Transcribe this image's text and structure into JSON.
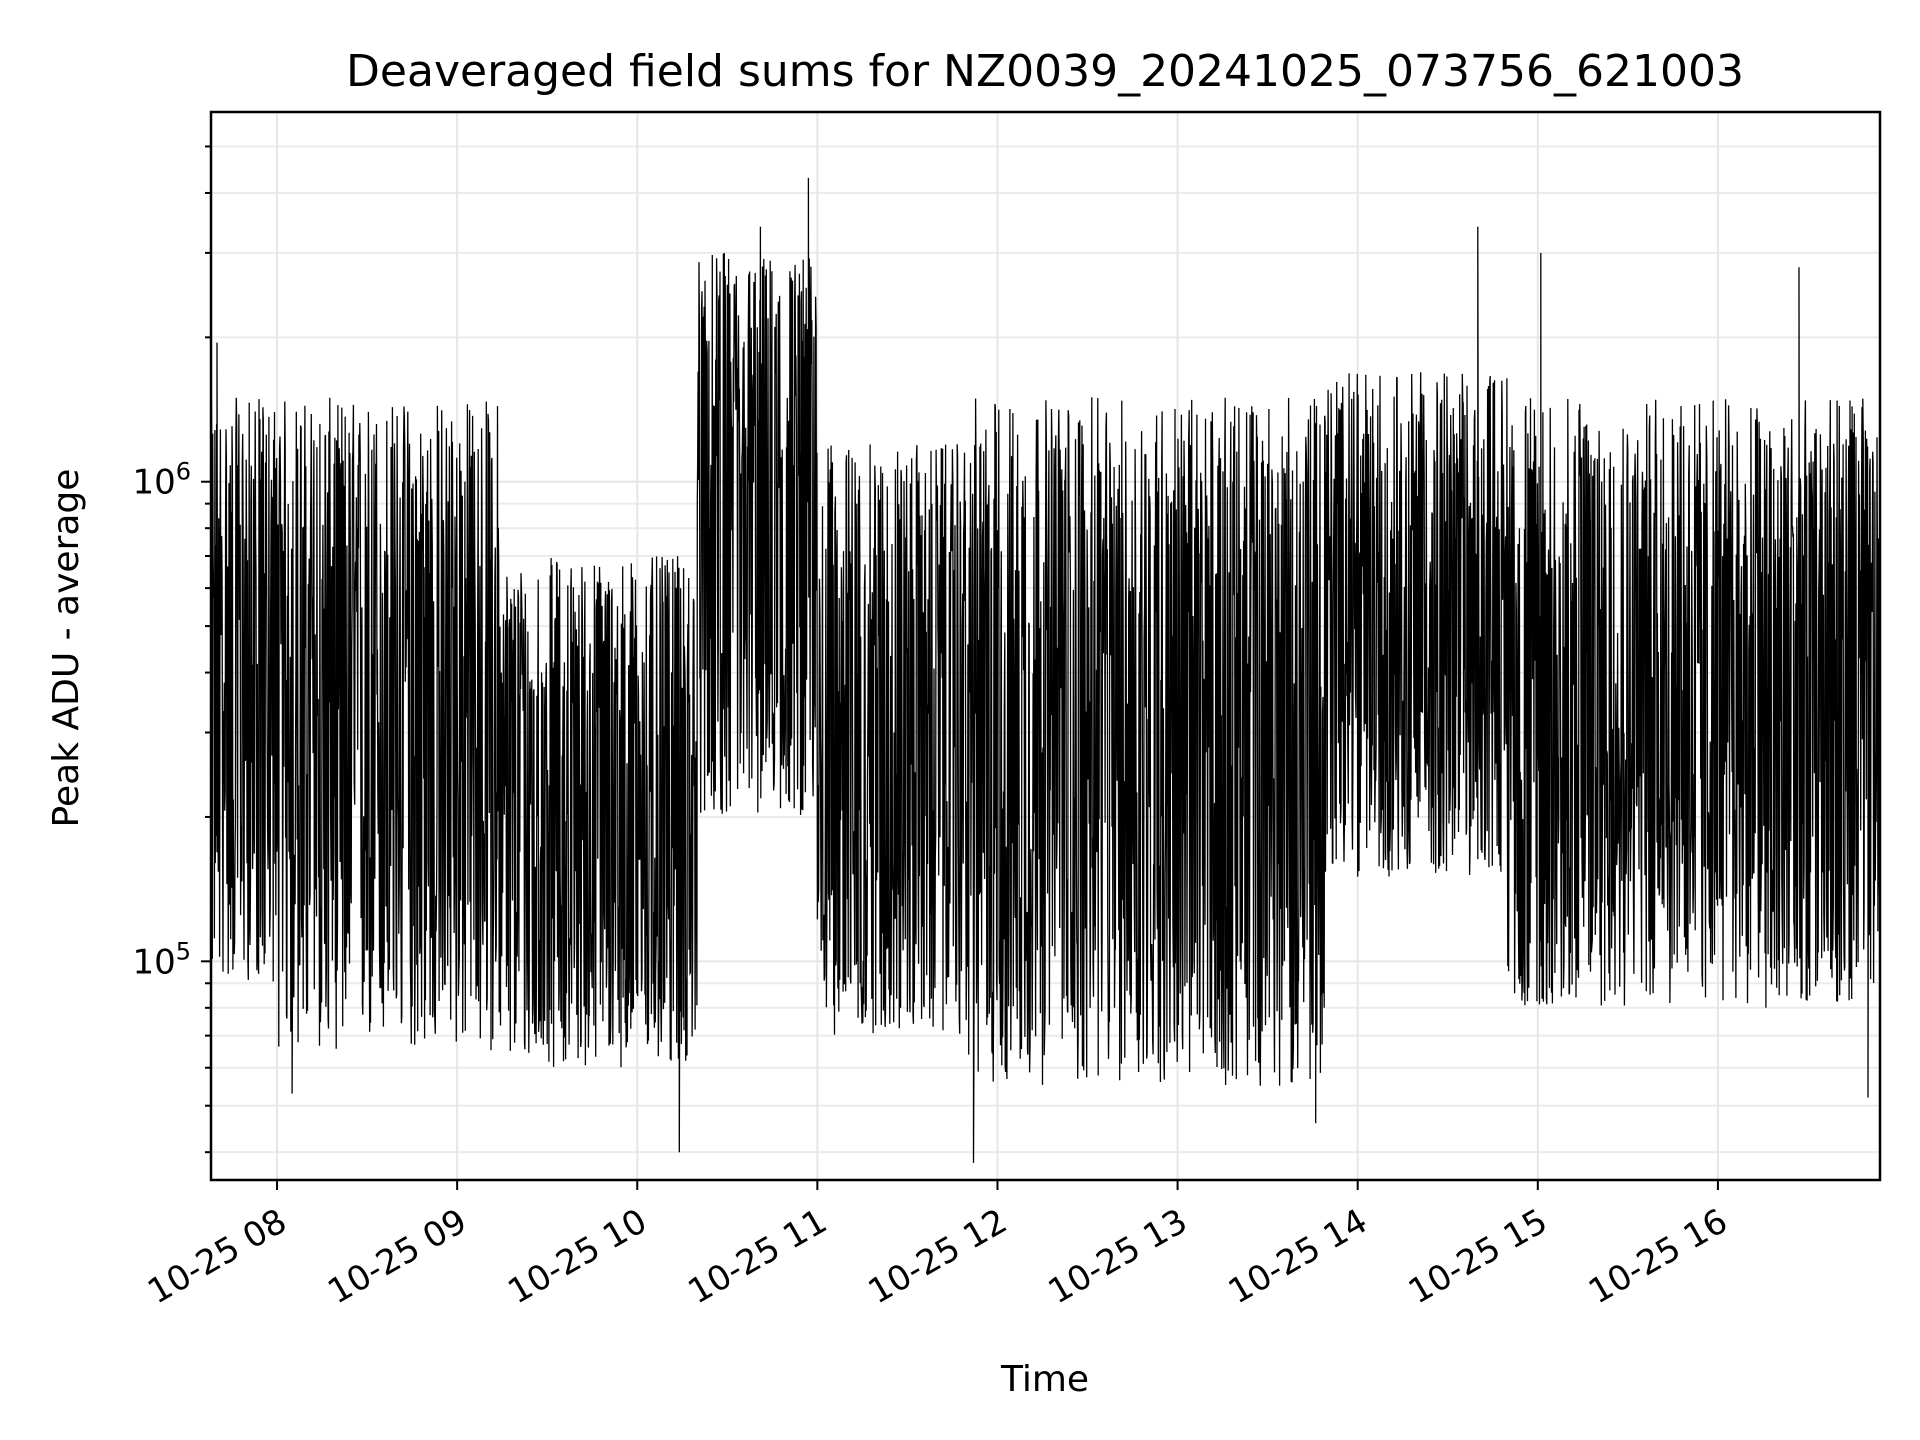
{
  "chart_data": {
    "type": "line",
    "title": "Deaveraged field sums for NZ0039_20241025_073756_621003",
    "xlabel": "Time",
    "ylabel": "Peak ADU - average",
    "yscale": "log",
    "grid": true,
    "x_range": [
      "10-25 07:38",
      "10-25 16:54"
    ],
    "ylim": [
      35000,
      5900000
    ],
    "x_ticks": [
      {
        "label": "10-25 08",
        "hour": 8
      },
      {
        "label": "10-25 09",
        "hour": 9
      },
      {
        "label": "10-25 10",
        "hour": 10
      },
      {
        "label": "10-25 11",
        "hour": 11
      },
      {
        "label": "10-25 12",
        "hour": 12
      },
      {
        "label": "10-25 13",
        "hour": 13
      },
      {
        "label": "10-25 14",
        "hour": 14
      },
      {
        "label": "10-25 15",
        "hour": 15
      },
      {
        "label": "10-25 16",
        "hour": 16
      }
    ],
    "y_ticks": [
      {
        "value": 100000,
        "base": "10",
        "exp": "5"
      },
      {
        "value": 1000000,
        "base": "10",
        "exp": "6"
      }
    ],
    "series": [
      {
        "color": "#000000",
        "segments": [
          {
            "start": "07:38",
            "end": "08:00",
            "lo": 90000,
            "hi": 1500000
          },
          {
            "start": "08:00",
            "end": "09:15",
            "lo": 65000,
            "hi": 1500000
          },
          {
            "start": "09:15",
            "end": "10:20",
            "lo": 60000,
            "hi": 700000
          },
          {
            "start": "10:20",
            "end": "11:00",
            "lo": 200000,
            "hi": 3000000
          },
          {
            "start": "11:00",
            "end": "11:50",
            "lo": 70000,
            "hi": 1200000
          },
          {
            "start": "11:50",
            "end": "13:50",
            "lo": 55000,
            "hi": 1500000
          },
          {
            "start": "13:50",
            "end": "14:50",
            "lo": 150000,
            "hi": 1700000
          },
          {
            "start": "14:50",
            "end": "16:54",
            "lo": 80000,
            "hi": 1500000
          }
        ],
        "peaks": [
          {
            "time": "07:40",
            "value": 1950000
          },
          {
            "time": "10:29",
            "value": 3000000
          },
          {
            "time": "10:41",
            "value": 3400000
          },
          {
            "time": "10:57",
            "value": 4300000
          },
          {
            "time": "14:40",
            "value": 3400000
          },
          {
            "time": "15:01",
            "value": 3000000
          },
          {
            "time": "16:27",
            "value": 2800000
          }
        ],
        "dips": [
          {
            "time": "08:05",
            "value": 53000
          },
          {
            "time": "10:14",
            "value": 40000
          },
          {
            "time": "11:52",
            "value": 38000
          },
          {
            "time": "13:46",
            "value": 46000
          },
          {
            "time": "16:50",
            "value": 52000
          }
        ]
      }
    ]
  }
}
